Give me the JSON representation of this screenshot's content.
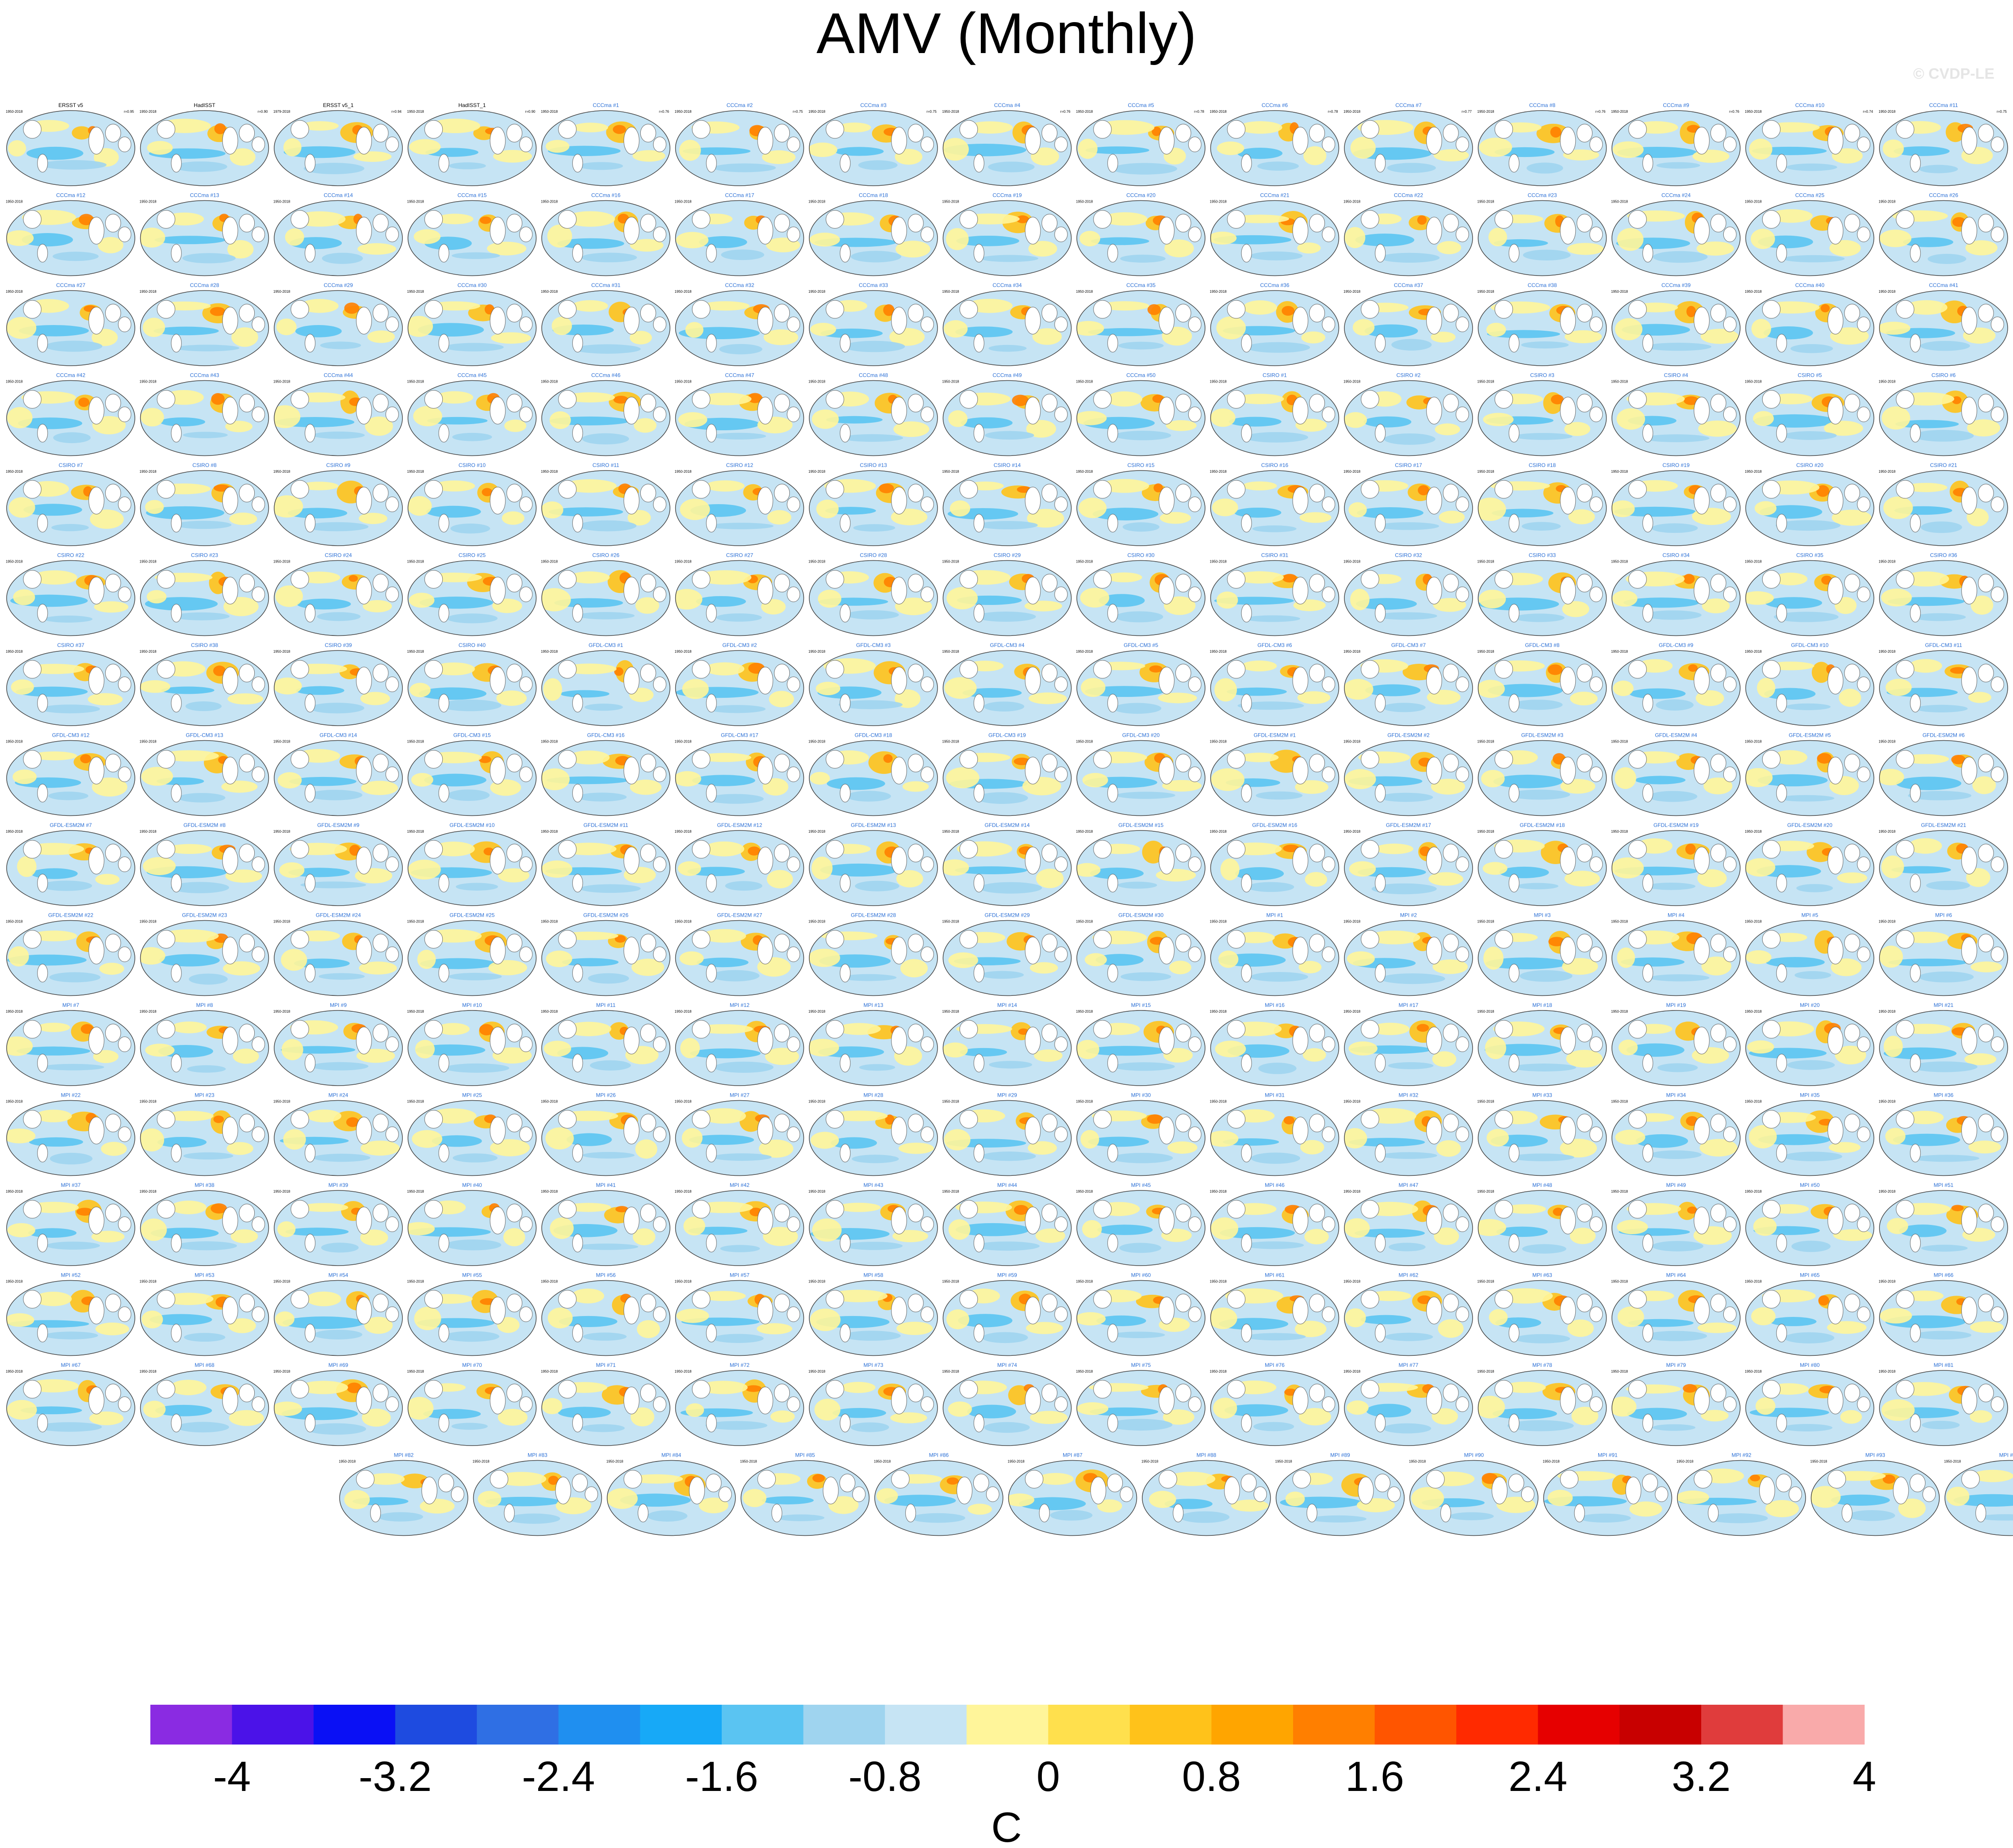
{
  "figure": {
    "title": "AMV (Monthly)",
    "watermark": "© CVDP-LE"
  },
  "chart_data": {
    "type": "heatmap",
    "title": "AMV (Monthly)",
    "description_of_panels": "Ensemble of global SST regression maps, one per dataset/member",
    "panels": [
      {
        "label": "ERSST v5",
        "period": "1950-2018",
        "value": "r=0.95"
      },
      {
        "label": "HadISST",
        "period": "1950-2018",
        "value": "r=0.90"
      },
      {
        "label": "ERSST v5_1",
        "period": "1979-2018",
        "value": "r=0.94"
      },
      {
        "label": "HadISST_1",
        "period": "1950-2018",
        "value": "r=0.90"
      },
      {
        "label": "CCCma #1",
        "period": "1950-2018",
        "value": "r=0.76"
      },
      {
        "label": "CCCma #2",
        "period": "1950-2018",
        "value": "r=0.75"
      },
      {
        "label": "CCCma #3",
        "period": "1950-2018",
        "value": "r=0.75"
      },
      {
        "label": "CCCma #4",
        "period": "1950-2018",
        "value": "r=0.76"
      },
      {
        "label": "CCCma #5",
        "period": "1950-2018",
        "value": "r=0.78"
      },
      {
        "label": "CCCma #6",
        "period": "1950-2018",
        "value": "r=0.78"
      },
      {
        "label": "CCCma #7",
        "period": "1950-2018",
        "value": "r=0.77"
      },
      {
        "label": "CCCma #8",
        "period": "1950-2018",
        "value": "r=0.76"
      },
      {
        "label": "CCCma #9",
        "period": "1950-2018",
        "value": "r=0.76"
      },
      {
        "label": "CCCma #10",
        "period": "1950-2018",
        "value": "r=0.74"
      },
      {
        "label": "CCCma #11",
        "period": "1950-2018",
        "value": "r=0.75"
      }
    ],
    "panel_groups": [
      {
        "prefix": "CCCma",
        "count": 50
      },
      {
        "prefix": "CSIRO",
        "count": 40
      },
      {
        "prefix": "GFDL-CM3",
        "count": 20
      },
      {
        "prefix": "GFDL-ESM2M",
        "count": 30
      },
      {
        "prefix": "MPI",
        "count": 100
      },
      {
        "prefix": "NCAR",
        "count": 40
      },
      {
        "prefix": "SMHI_KNMI",
        "count": 16
      }
    ],
    "colorbar": {
      "label": "C",
      "tick_labels": [
        "-4",
        "-3.2",
        "-2.4",
        "-1.6",
        "-0.8",
        "0",
        "0.8",
        "1.6",
        "2.4",
        "3.2",
        "4"
      ],
      "colors": [
        "#8a2be2",
        "#4b12e8",
        "#0a10f5",
        "#1e4be0",
        "#2f6fe4",
        "#1f8ff0",
        "#17a9f7",
        "#5ac4f2",
        "#9fd4ef",
        "#c6e4f4",
        "#fff59a",
        "#ffe04d",
        "#ffc21a",
        "#ffa500",
        "#ff7f00",
        "#ff5500",
        "#ff2a00",
        "#e60000",
        "#c80000",
        "#e03c3c",
        "#f9aaaa"
      ]
    },
    "xlabel": "",
    "ylabel": ""
  }
}
